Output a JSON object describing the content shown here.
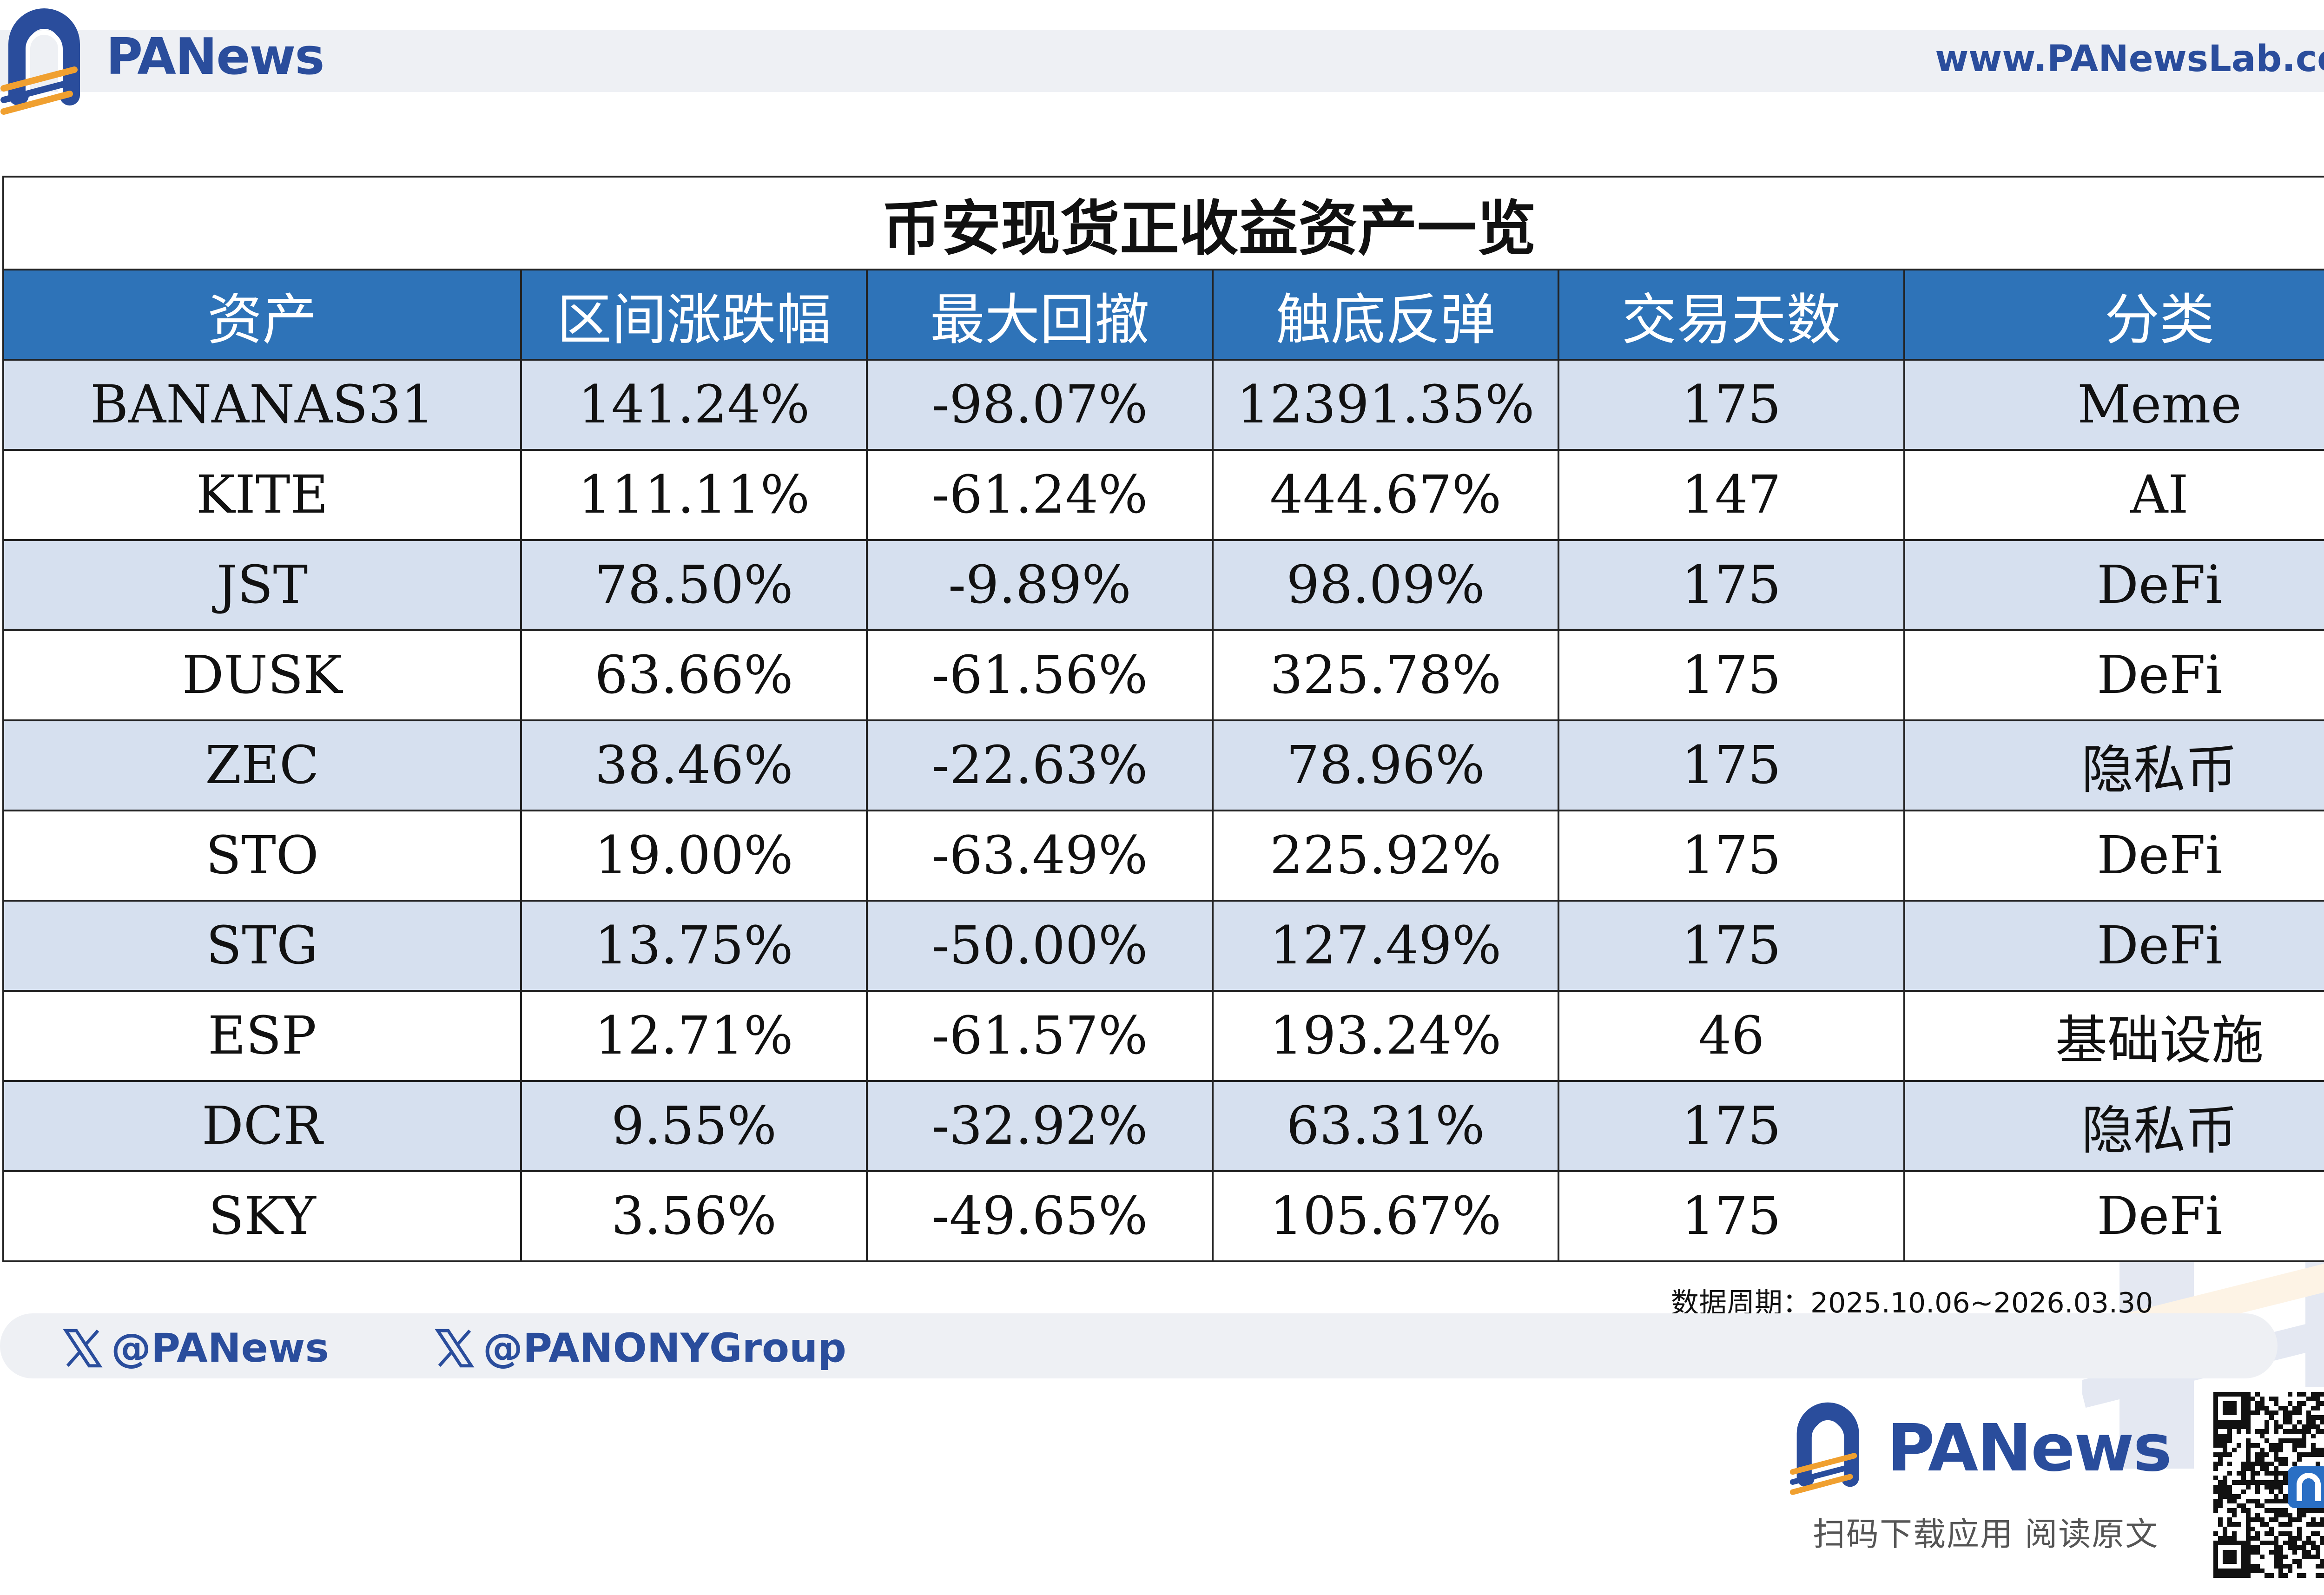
{
  "header": {
    "brand": "PANews",
    "url": "www.PANewsLab.com"
  },
  "table": {
    "title": "币安现货正收益资产一览",
    "columns": [
      "资产",
      "区间涨跌幅",
      "最大回撤",
      "触底反弹",
      "交易天数",
      "分类"
    ]
  },
  "chart_data": {
    "type": "table",
    "title": "币安现货正收益资产一览",
    "columns": [
      "资产",
      "区间涨跌幅",
      "最大回撤",
      "触底反弹",
      "交易天数",
      "分类"
    ],
    "rows": [
      [
        "BANANAS31",
        "141.24%",
        "-98.07%",
        "12391.35%",
        "175",
        "Meme"
      ],
      [
        "KITE",
        "111.11%",
        "-61.24%",
        "444.67%",
        "147",
        "AI"
      ],
      [
        "JST",
        "78.50%",
        "-9.89%",
        "98.09%",
        "175",
        "DeFi"
      ],
      [
        "DUSK",
        "63.66%",
        "-61.56%",
        "325.78%",
        "175",
        "DeFi"
      ],
      [
        "ZEC",
        "38.46%",
        "-22.63%",
        "78.96%",
        "175",
        "隐私币"
      ],
      [
        "STO",
        "19.00%",
        "-63.49%",
        "225.92%",
        "175",
        "DeFi"
      ],
      [
        "STG",
        "13.75%",
        "-50.00%",
        "127.49%",
        "175",
        "DeFi"
      ],
      [
        "ESP",
        "12.71%",
        "-61.57%",
        "193.24%",
        "46",
        "基础设施"
      ],
      [
        "DCR",
        "9.55%",
        "-32.92%",
        "63.31%",
        "175",
        "隐私币"
      ],
      [
        "SKY",
        "3.56%",
        "-49.65%",
        "105.67%",
        "175",
        "DeFi"
      ]
    ]
  },
  "footer": {
    "date_period": "数据周期：2025.10.06~2026.03.30",
    "handle_1": "@PANews",
    "handle_2": "@PANONYGroup",
    "brand": "PANews",
    "tagline": "扫码下载应用 阅读原文"
  },
  "colors": {
    "brand_blue": "#2a4d9c",
    "brand_orange": "#f0a030",
    "header_fill": "#2e73b8",
    "stripe_fill": "#d6e0ef"
  },
  "icons": {
    "logo": "panews-logo-icon",
    "x": "x-logo-icon",
    "qr": "qr-code-icon"
  }
}
